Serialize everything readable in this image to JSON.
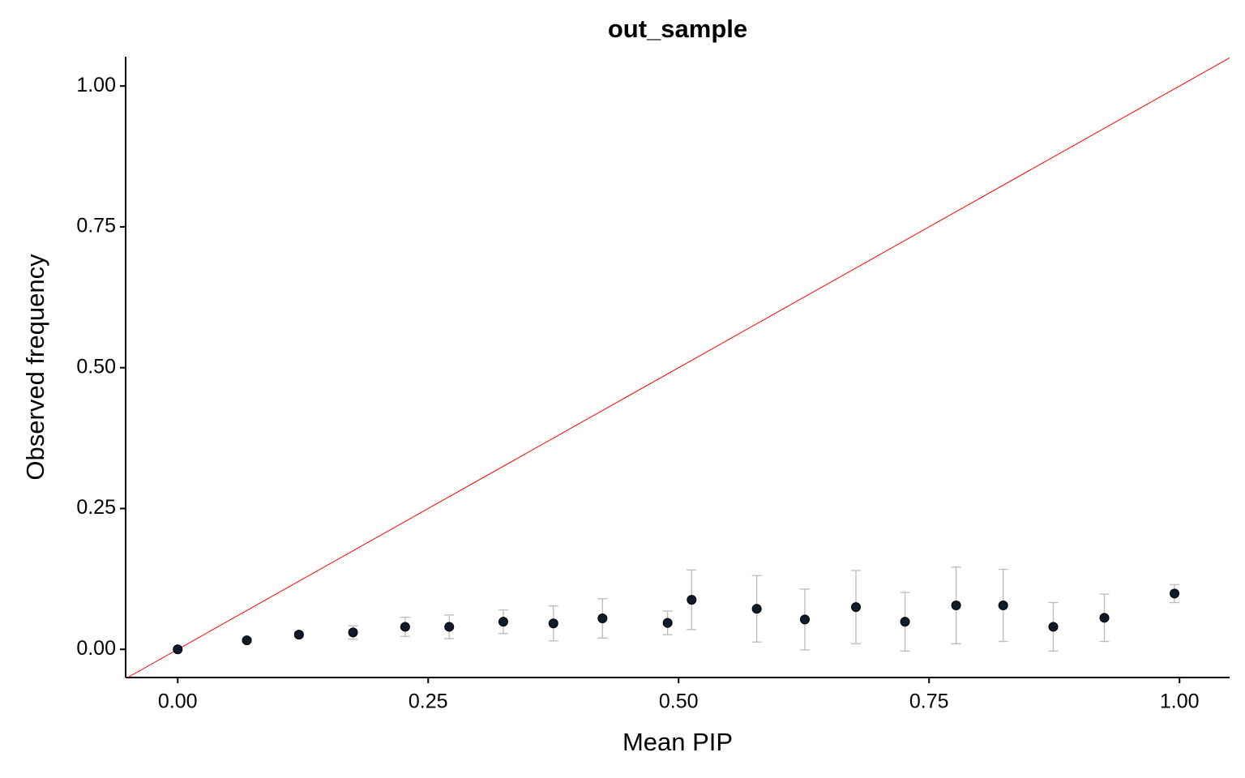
{
  "chart_data": {
    "type": "scatter",
    "title": "out_sample",
    "x_label": "Mean PIP",
    "y_label": "Observed frequency",
    "x": [
      0.0,
      0.069,
      0.121,
      0.175,
      0.227,
      0.271,
      0.325,
      0.375,
      0.424,
      0.489,
      0.513,
      0.578,
      0.626,
      0.677,
      0.726,
      0.777,
      0.824,
      0.874,
      0.925,
      0.995
    ],
    "series": [
      {
        "color": "#0d1b2a",
        "error_color": "#bbbbbb",
        "values": [
          0.0,
          0.016,
          0.026,
          0.03,
          0.04,
          0.04,
          0.049,
          0.046,
          0.055,
          0.047,
          0.088,
          0.072,
          0.053,
          0.075,
          0.049,
          0.078,
          0.078,
          0.04,
          0.056,
          0.099
        ],
        "errors": [
          0.002,
          0.003,
          0.005,
          0.012,
          0.017,
          0.021,
          0.021,
          0.031,
          0.035,
          0.021,
          0.053,
          0.059,
          0.054,
          0.065,
          0.052,
          0.068,
          0.064,
          0.043,
          0.042,
          0.016
        ]
      }
    ],
    "identity_line": true,
    "identity_color": "#ff0000",
    "xlim": [
      -0.052,
      1.05
    ],
    "ylim": [
      -0.05,
      1.052
    ],
    "xticks": [
      {
        "value": 0,
        "label": "0.00"
      },
      {
        "value": 0.25,
        "label": "0.25"
      },
      {
        "value": 0.5,
        "label": "0.50"
      },
      {
        "value": 0.75,
        "label": "0.75"
      },
      {
        "value": 1,
        "label": "1.00"
      }
    ],
    "yticks": [
      {
        "value": 0,
        "label": "0.00"
      },
      {
        "value": 0.25,
        "label": "0.25"
      },
      {
        "value": 0.5,
        "label": "0.50"
      },
      {
        "value": 0.75,
        "label": "0.75"
      },
      {
        "value": 1,
        "label": "1.00"
      }
    ]
  }
}
